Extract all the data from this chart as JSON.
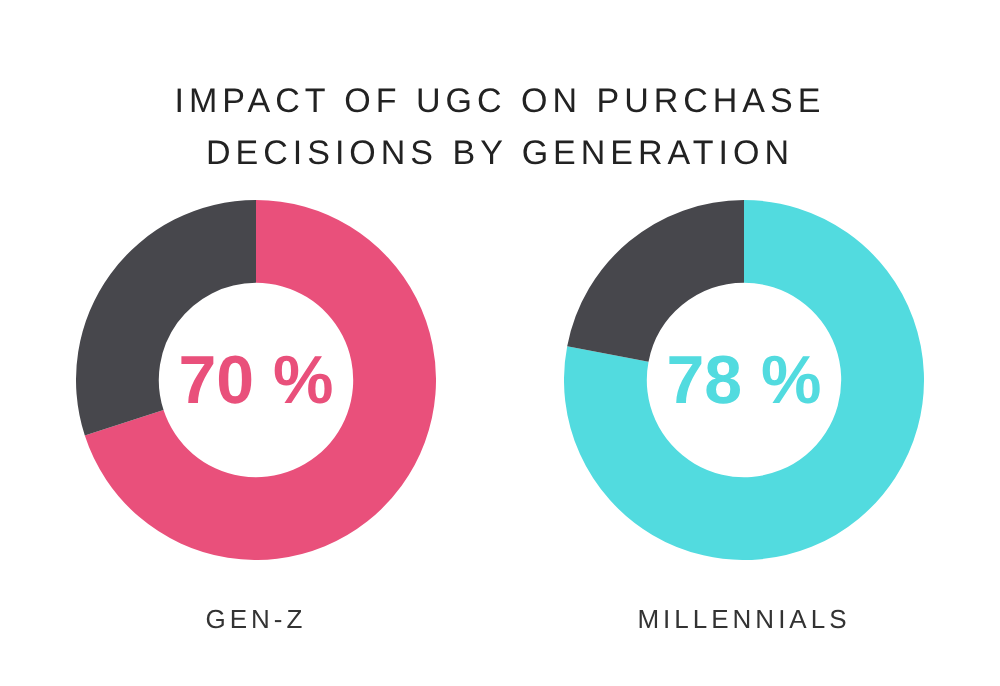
{
  "chart_data": [
    {
      "type": "donut",
      "title": "IMPACT OF UGC ON PURCHASE DECISIONS BY GENERATION",
      "xlabel": "GEN-Z",
      "categories": [
        null,
        null
      ],
      "values": [
        70,
        30
      ],
      "colors": [
        "#e9507b",
        "#47474c"
      ],
      "value_labels": [
        "70 %",
        null
      ],
      "legend": false
    },
    {
      "type": "donut",
      "xlabel": "MILLENNIALS",
      "categories": [
        null,
        null
      ],
      "values": [
        78,
        22
      ],
      "colors": [
        "#52dbdf",
        "#47474c"
      ],
      "value_labels": [
        "78 %",
        null
      ],
      "legend": false
    }
  ]
}
